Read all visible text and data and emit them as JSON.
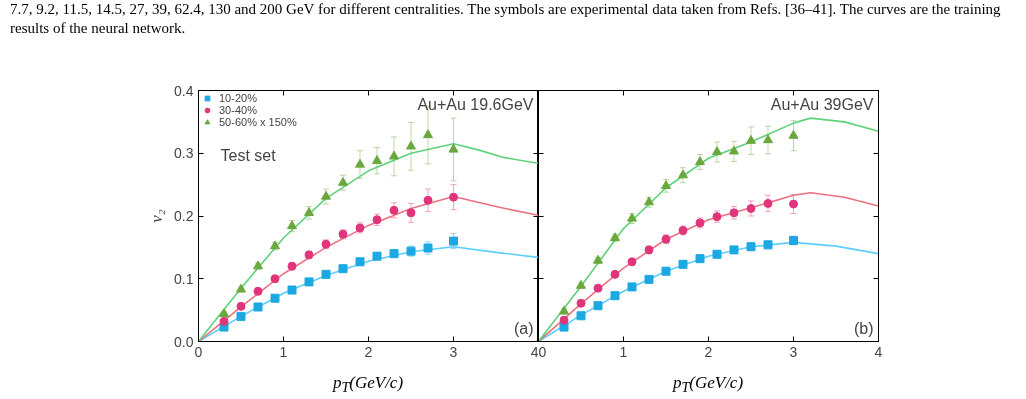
{
  "chart_data": [
    {
      "type": "scatter",
      "xlabel": "p$_{T}$(GeV/c)",
      "ylabel": "v₂",
      "xlim": [
        0,
        4
      ],
      "ylim": [
        0,
        0.4
      ],
      "xticks": [
        0,
        1,
        2,
        3,
        4
      ],
      "yticks": [
        {
          "value": 0,
          "label": "0.0"
        },
        0.1,
        0.2,
        0.3,
        0.4
      ],
      "grid": false,
      "legend": "top left",
      "annotations": [
        "7.7, 9.2, 11.5, 14.5, 27, 39, 62.4, 130 and 200 GeV for different centralities. The symbols are experimental data taken from Refs. [36–41]. The curves are the training results of the neural network.",
        "Au+Au 19.6GeV",
        "Test set",
        "(a)"
      ],
      "series": [
        {
          "type": "line",
          "color": "#5ccfff",
          "x": [
            0,
            0.5,
            1.0,
            1.5,
            2.0,
            2.5,
            3.0,
            3.5,
            4.0
          ],
          "values": [
            0,
            0.04,
            0.077,
            0.105,
            0.128,
            0.143,
            0.151,
            0.142,
            0.134
          ]
        },
        {
          "type": "line",
          "color": "#ee7080",
          "x": [
            0,
            0.5,
            1.0,
            1.5,
            2.0,
            2.5,
            3.0,
            3.5,
            4.0
          ],
          "values": [
            0,
            0.055,
            0.108,
            0.15,
            0.185,
            0.212,
            0.231,
            0.215,
            0.201
          ]
        },
        {
          "type": "line",
          "color": "#5fd27a",
          "x": [
            0,
            0.5,
            1.0,
            1.5,
            2.0,
            2.5,
            3.0,
            3.3,
            3.6,
            4.0
          ],
          "values": [
            0,
            0.085,
            0.165,
            0.228,
            0.272,
            0.3,
            0.315,
            0.305,
            0.293,
            0.284
          ]
        },
        {
          "name": "10-20%",
          "marker": "square",
          "color": "#1ca8e0",
          "x": [
            0.3,
            0.5,
            0.7,
            0.9,
            1.1,
            1.3,
            1.5,
            1.7,
            1.9,
            2.1,
            2.3,
            2.5,
            2.7,
            3.0
          ],
          "values": [
            0.023,
            0.04,
            0.055,
            0.069,
            0.082,
            0.095,
            0.107,
            0.116,
            0.127,
            0.136,
            0.14,
            0.144,
            0.149,
            0.16
          ],
          "errors": [
            0.004,
            0.004,
            0.004,
            0.004,
            0.004,
            0.004,
            0.004,
            0.004,
            0.004,
            0.005,
            0.006,
            0.008,
            0.01,
            0.012
          ]
        },
        {
          "name": "30-40%",
          "marker": "circle",
          "color": "#e0357a",
          "x": [
            0.3,
            0.5,
            0.7,
            0.9,
            1.1,
            1.3,
            1.5,
            1.7,
            1.9,
            2.1,
            2.3,
            2.5,
            2.7,
            3.0
          ],
          "values": [
            0.032,
            0.056,
            0.08,
            0.1,
            0.12,
            0.138,
            0.155,
            0.171,
            0.181,
            0.194,
            0.209,
            0.205,
            0.225,
            0.23
          ],
          "errors": [
            0.005,
            0.005,
            0.005,
            0.005,
            0.006,
            0.006,
            0.007,
            0.007,
            0.008,
            0.009,
            0.012,
            0.015,
            0.018,
            0.02
          ]
        },
        {
          "name": "50-60% x 150%",
          "marker": "triangle",
          "color": "#6aa83c",
          "x": [
            0.3,
            0.5,
            0.7,
            0.9,
            1.1,
            1.3,
            1.5,
            1.7,
            1.9,
            2.1,
            2.3,
            2.5,
            2.7,
            3.0
          ],
          "values": [
            0.044,
            0.083,
            0.12,
            0.152,
            0.184,
            0.205,
            0.231,
            0.253,
            0.282,
            0.288,
            0.295,
            0.311,
            0.329,
            0.306
          ],
          "errors": [
            0.004,
            0.004,
            0.005,
            0.006,
            0.009,
            0.01,
            0.012,
            0.012,
            0.022,
            0.021,
            0.031,
            0.038,
            0.046,
            0.05
          ]
        }
      ]
    },
    {
      "type": "scatter",
      "xlabel": "p$_{T}$(GeV/c)",
      "xlim": [
        0,
        4
      ],
      "ylim": [
        0,
        0.4
      ],
      "xticks": [
        0,
        1,
        2,
        3,
        4
      ],
      "yticks": [
        0,
        0.1,
        0.2,
        0.3,
        0.4
      ],
      "grid": false,
      "tick_labels": "x",
      "annotations": [
        "Au+Au 39GeV",
        "(b)"
      ],
      "series": [
        {
          "type": "line",
          "color": "#5ccfff",
          "x": [
            0,
            0.5,
            1.0,
            1.5,
            2.0,
            2.5,
            3.0,
            3.5,
            4.0
          ],
          "values": [
            0,
            0.042,
            0.08,
            0.112,
            0.136,
            0.151,
            0.158,
            0.152,
            0.14
          ]
        },
        {
          "type": "line",
          "color": "#ee7080",
          "x": [
            0,
            0.5,
            1.0,
            1.5,
            2.0,
            2.5,
            3.0,
            3.2,
            3.6,
            4.0
          ],
          "values": [
            0,
            0.06,
            0.117,
            0.163,
            0.194,
            0.213,
            0.233,
            0.237,
            0.23,
            0.216
          ]
        },
        {
          "type": "line",
          "color": "#5fd27a",
          "x": [
            0,
            0.5,
            1.0,
            1.5,
            2.0,
            2.5,
            3.0,
            3.2,
            3.6,
            4.0
          ],
          "values": [
            0,
            0.088,
            0.18,
            0.245,
            0.292,
            0.318,
            0.348,
            0.356,
            0.35,
            0.335
          ]
        },
        {
          "marker": "square",
          "color": "#1ca8e0",
          "x": [
            0.3,
            0.5,
            0.7,
            0.9,
            1.1,
            1.3,
            1.5,
            1.7,
            1.9,
            2.1,
            2.3,
            2.5,
            2.7,
            3.0
          ],
          "values": [
            0.023,
            0.041,
            0.057,
            0.073,
            0.087,
            0.099,
            0.112,
            0.123,
            0.132,
            0.139,
            0.146,
            0.151,
            0.154,
            0.161
          ],
          "errors": [
            0.004,
            0.004,
            0.004,
            0.004,
            0.004,
            0.004,
            0.004,
            0.004,
            0.004,
            0.005,
            0.005,
            0.006,
            0.006,
            0.007
          ]
        },
        {
          "marker": "circle",
          "color": "#e0357a",
          "x": [
            0.3,
            0.5,
            0.7,
            0.9,
            1.1,
            1.3,
            1.5,
            1.7,
            1.9,
            2.1,
            2.3,
            2.5,
            2.7,
            3.0
          ],
          "values": [
            0.034,
            0.061,
            0.085,
            0.107,
            0.127,
            0.146,
            0.163,
            0.177,
            0.189,
            0.199,
            0.205,
            0.212,
            0.22,
            0.219
          ],
          "errors": [
            0.004,
            0.004,
            0.004,
            0.004,
            0.005,
            0.006,
            0.007,
            0.007,
            0.008,
            0.009,
            0.01,
            0.012,
            0.013,
            0.015
          ]
        },
        {
          "marker": "triangle",
          "color": "#6aa83c",
          "x": [
            0.3,
            0.5,
            0.7,
            0.9,
            1.1,
            1.3,
            1.5,
            1.7,
            1.9,
            2.1,
            2.3,
            2.5,
            2.7,
            3.0
          ],
          "values": [
            0.048,
            0.089,
            0.129,
            0.165,
            0.196,
            0.222,
            0.248,
            0.265,
            0.286,
            0.302,
            0.303,
            0.32,
            0.321,
            0.328
          ],
          "errors": [
            0.004,
            0.004,
            0.005,
            0.006,
            0.008,
            0.008,
            0.01,
            0.012,
            0.012,
            0.016,
            0.016,
            0.022,
            0.022,
            0.024
          ]
        }
      ]
    }
  ]
}
